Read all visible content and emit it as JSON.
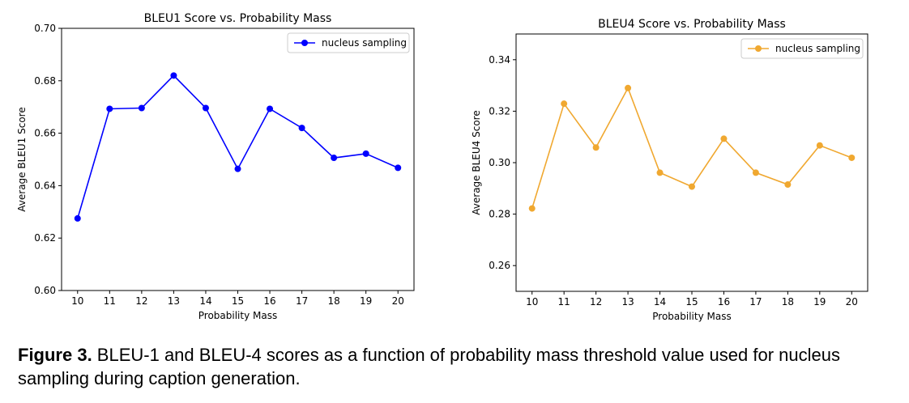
{
  "chart_data": [
    {
      "type": "line",
      "title": "BLEU1 Score vs. Probability Mass",
      "xlabel": "Probability Mass",
      "ylabel": "Average BLEU1 Score",
      "x": [
        10,
        11,
        12,
        13,
        14,
        15,
        16,
        17,
        18,
        19,
        20
      ],
      "series": [
        {
          "name": "nucleus sampling",
          "color": "#0000ff",
          "values": [
            0.6275,
            0.6693,
            0.6696,
            0.682,
            0.6696,
            0.6464,
            0.6693,
            0.662,
            0.6506,
            0.6522,
            0.6468
          ]
        }
      ],
      "xlim": [
        9.5,
        20.5
      ],
      "ylim": [
        0.6,
        0.7
      ],
      "yticks": [
        0.6,
        0.62,
        0.64,
        0.66,
        0.68,
        0.7
      ],
      "ytick_labels": [
        "0.60",
        "0.62",
        "0.64",
        "0.66",
        "0.68",
        "0.70"
      ],
      "legend": "top-right",
      "grid": false
    },
    {
      "type": "line",
      "title": "BLEU4 Score vs. Probability Mass",
      "xlabel": "Probability Mass",
      "ylabel": "Average BLEU4 Score",
      "x": [
        10,
        11,
        12,
        13,
        14,
        15,
        16,
        17,
        18,
        19,
        20
      ],
      "series": [
        {
          "name": "nucleus sampling",
          "color": "#f0a830",
          "values": [
            0.2822,
            0.3229,
            0.3059,
            0.329,
            0.2961,
            0.2907,
            0.3093,
            0.2961,
            0.2915,
            0.3067,
            0.3019
          ]
        }
      ],
      "xlim": [
        9.5,
        20.5
      ],
      "ylim": [
        0.25,
        0.35
      ],
      "yticks": [
        0.26,
        0.28,
        0.3,
        0.32,
        0.34
      ],
      "ytick_labels": [
        "0.26",
        "0.28",
        "0.30",
        "0.32",
        "0.34"
      ],
      "legend": "top-right",
      "grid": false
    }
  ],
  "caption": {
    "label": "Figure 3.",
    "text": " BLEU-1 and BLEU-4 scores as a function of probability mass threshold value used for nucleus sampling during caption generation."
  }
}
